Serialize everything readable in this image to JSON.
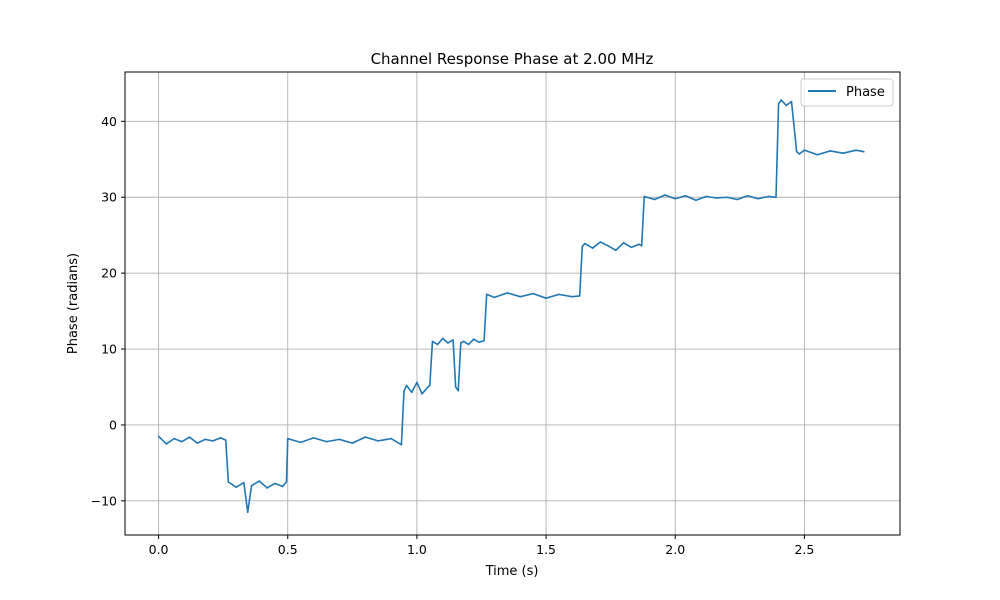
{
  "chart_data": {
    "type": "line",
    "title": "Channel Response Phase at 2.00 MHz",
    "xlabel": "Time (s)",
    "ylabel": "Phase (radians)",
    "xlim": [
      -0.13,
      2.87
    ],
    "ylim": [
      -14.5,
      46.5
    ],
    "xticks": [
      0.0,
      0.5,
      1.0,
      1.5,
      2.0,
      2.5
    ],
    "xtick_labels": [
      "0.0",
      "0.5",
      "1.0",
      "1.5",
      "2.0",
      "2.5"
    ],
    "yticks": [
      -10,
      0,
      10,
      20,
      30,
      40
    ],
    "ytick_labels": [
      "−10",
      "0",
      "10",
      "20",
      "30",
      "40"
    ],
    "grid": true,
    "legend": {
      "position": "top-right",
      "entries": [
        "Phase"
      ]
    },
    "series": [
      {
        "name": "Phase",
        "color": "#1f77b4",
        "x": [
          0.0,
          0.03,
          0.06,
          0.09,
          0.12,
          0.15,
          0.18,
          0.21,
          0.24,
          0.26,
          0.27,
          0.3,
          0.33,
          0.345,
          0.36,
          0.39,
          0.42,
          0.45,
          0.48,
          0.495,
          0.5,
          0.55,
          0.6,
          0.65,
          0.7,
          0.75,
          0.8,
          0.85,
          0.9,
          0.94,
          0.95,
          0.96,
          0.98,
          1.0,
          1.02,
          1.04,
          1.05,
          1.06,
          1.08,
          1.1,
          1.12,
          1.14,
          1.15,
          1.16,
          1.17,
          1.18,
          1.2,
          1.22,
          1.24,
          1.26,
          1.27,
          1.3,
          1.35,
          1.4,
          1.45,
          1.5,
          1.55,
          1.6,
          1.63,
          1.64,
          1.65,
          1.68,
          1.71,
          1.74,
          1.77,
          1.8,
          1.83,
          1.86,
          1.87,
          1.88,
          1.92,
          1.96,
          2.0,
          2.04,
          2.08,
          2.12,
          2.16,
          2.2,
          2.24,
          2.28,
          2.32,
          2.36,
          2.39,
          2.4,
          2.41,
          2.43,
          2.45,
          2.47,
          2.48,
          2.5,
          2.55,
          2.6,
          2.65,
          2.7,
          2.73
        ],
        "y": [
          -1.5,
          -2.5,
          -1.8,
          -2.2,
          -1.6,
          -2.4,
          -1.9,
          -2.1,
          -1.7,
          -2.0,
          -7.5,
          -8.2,
          -7.6,
          -11.5,
          -8.0,
          -7.4,
          -8.3,
          -7.7,
          -8.1,
          -7.5,
          -1.8,
          -2.3,
          -1.7,
          -2.2,
          -1.9,
          -2.4,
          -1.6,
          -2.1,
          -1.8,
          -2.6,
          4.5,
          5.2,
          4.3,
          5.6,
          4.1,
          4.9,
          5.2,
          11.0,
          10.6,
          11.4,
          10.8,
          11.2,
          5.0,
          4.5,
          10.8,
          11.0,
          10.6,
          11.3,
          10.9,
          11.1,
          17.2,
          16.8,
          17.4,
          16.9,
          17.3,
          16.7,
          17.2,
          16.9,
          17.0,
          23.5,
          23.9,
          23.3,
          24.1,
          23.6,
          23.0,
          24.0,
          23.4,
          23.8,
          23.6,
          30.1,
          29.7,
          30.3,
          29.8,
          30.2,
          29.6,
          30.1,
          29.9,
          30.0,
          29.7,
          30.2,
          29.8,
          30.1,
          30.0,
          42.3,
          42.8,
          42.1,
          42.6,
          36.0,
          35.7,
          36.2,
          35.6,
          36.1,
          35.8,
          36.2,
          36.0
        ]
      }
    ]
  }
}
